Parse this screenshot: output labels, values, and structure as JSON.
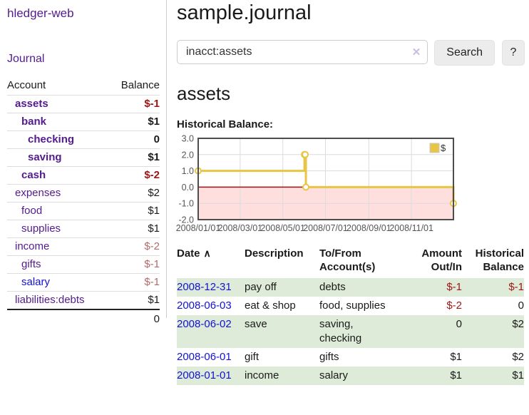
{
  "colors": {
    "link_purple": "#541b8e",
    "link_blue": "#1212d6",
    "neg_strong": "#a01616",
    "neg_muted": "#b26b6b",
    "row_green": "#deebd8",
    "chart_line": "#e8c544",
    "chart_negative_fill": "#ffdede",
    "chart_zero_line": "#a41111",
    "chart_grid": "#dcdcdc",
    "chart_border": "#4d4d4d",
    "axis_text": "#555555"
  },
  "sidebar": {
    "brand": "hledger-web",
    "nav": "Journal",
    "accounts": {
      "col_account": "Account",
      "col_balance": "Balance",
      "rows": [
        {
          "account": "assets",
          "balance": "$-1",
          "level": 1,
          "bold": true,
          "link": "purple",
          "balance_style": "bold neg-strong"
        },
        {
          "account": "bank",
          "balance": "$1",
          "level": 2,
          "bold": true,
          "link": "purple",
          "balance_style": "bold"
        },
        {
          "account": "checking",
          "balance": "0",
          "level": 3,
          "bold": true,
          "link": "purple",
          "balance_style": "bold"
        },
        {
          "account": "saving",
          "balance": "$1",
          "level": 3,
          "bold": true,
          "link": "purple",
          "balance_style": "bold"
        },
        {
          "account": "cash",
          "balance": "$-2",
          "level": 2,
          "bold": true,
          "link": "purple",
          "balance_style": "bold neg-strong"
        },
        {
          "account": "expenses",
          "balance": "$2",
          "level": 1,
          "bold": false,
          "link": "purple",
          "balance_style": ""
        },
        {
          "account": "food",
          "balance": "$1",
          "level": 2,
          "bold": false,
          "link": "purple",
          "balance_style": ""
        },
        {
          "account": "supplies",
          "balance": "$1",
          "level": 2,
          "bold": false,
          "link": "purple",
          "balance_style": ""
        },
        {
          "account": "income",
          "balance": "$-2",
          "level": 1,
          "bold": false,
          "link": "purple",
          "balance_style": "neg-muted"
        },
        {
          "account": "gifts",
          "balance": "$-1",
          "level": 2,
          "bold": false,
          "link": "purple",
          "balance_style": "neg-muted"
        },
        {
          "account": "salary",
          "balance": "$-1",
          "level": 2,
          "bold": false,
          "link": "blue",
          "balance_style": "neg-muted"
        },
        {
          "account": "liabilities:debts",
          "balance": "$1",
          "level": 1,
          "bold": false,
          "link": "purple",
          "balance_style": ""
        }
      ],
      "total": "0"
    }
  },
  "main": {
    "title": "sample.journal",
    "search": {
      "value": "inacct:assets",
      "button": "Search",
      "help": "?",
      "clear_icon": "✕"
    },
    "account_heading": "assets",
    "chart_label": "Historical Balance:"
  },
  "chart_data": {
    "type": "line",
    "step": true,
    "title": "Historical Balance",
    "legend": "$",
    "legend_position": "top-right",
    "grid": true,
    "x_range": [
      "2008-01-01",
      "2008-12-31"
    ],
    "ylim": [
      -2,
      3
    ],
    "series": [
      {
        "name": "$",
        "points": [
          {
            "d": "2008-01-01",
            "v": 1
          },
          {
            "d": "2008-06-01",
            "v": 2
          },
          {
            "d": "2008-06-02",
            "v": 2
          },
          {
            "d": "2008-06-03",
            "v": 0
          },
          {
            "d": "2008-12-31",
            "v": -1
          }
        ]
      }
    ],
    "x_ticks": [
      {
        "d": "2008-01-01",
        "label": "2008/01/01"
      },
      {
        "d": "2008-03-01",
        "label": "2008/03/01"
      },
      {
        "d": "2008-05-01",
        "label": "2008/05/01"
      },
      {
        "d": "2008-07-01",
        "label": "2008/07/01"
      },
      {
        "d": "2008-09-01",
        "label": "2008/09/01"
      },
      {
        "d": "2008-11-01",
        "label": "2008/11/01"
      }
    ],
    "y_ticks": [
      {
        "v": 3,
        "label": "3.0"
      },
      {
        "v": 2,
        "label": "2.0"
      },
      {
        "v": 1,
        "label": "1.0"
      },
      {
        "v": 0,
        "label": "0.0"
      },
      {
        "v": -1,
        "label": "-1.0"
      },
      {
        "v": -2,
        "label": "-2.0"
      }
    ]
  },
  "register": {
    "sort_icon": "∧",
    "columns": [
      {
        "lines": [
          "Date"
        ],
        "align": "left",
        "sort": "asc"
      },
      {
        "lines": [
          "Description"
        ],
        "align": "left"
      },
      {
        "lines": [
          "To/From",
          "Account(s)"
        ],
        "align": "left"
      },
      {
        "lines": [
          "Amount",
          "Out/In"
        ],
        "align": "right"
      },
      {
        "lines": [
          "Historical",
          "Balance"
        ],
        "align": "right"
      }
    ],
    "rows": [
      {
        "date": "2008-12-31",
        "description": "pay off",
        "accounts": "debts",
        "amount": "$-1",
        "balance": "$-1"
      },
      {
        "date": "2008-06-03",
        "description": "eat & shop",
        "accounts": "food, supplies",
        "amount": "$-2",
        "balance": "0"
      },
      {
        "date": "2008-06-02",
        "description": "save",
        "accounts": "saving, checking",
        "amount": "0",
        "balance": "$2"
      },
      {
        "date": "2008-06-01",
        "description": "gift",
        "accounts": "gifts",
        "amount": "$1",
        "balance": "$2"
      },
      {
        "date": "2008-01-01",
        "description": "income",
        "accounts": "salary",
        "amount": "$1",
        "balance": "$1"
      }
    ]
  }
}
